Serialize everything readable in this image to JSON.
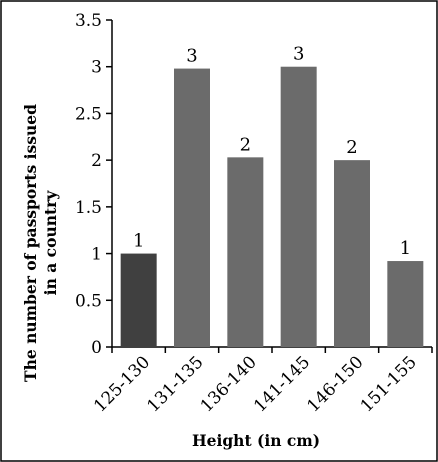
{
  "chart_data": {
    "type": "bar",
    "title": "",
    "xlabel": "Height (in cm)",
    "ylabel": [
      "The number of passports issued",
      "in a country"
    ],
    "categories": [
      "125-130",
      "131-135",
      "136-140",
      "141-145",
      "146-150",
      "151-155"
    ],
    "values": [
      1,
      3,
      2,
      3,
      2,
      1
    ],
    "display_heights": [
      1,
      2.98,
      2.03,
      3.0,
      2.0,
      0.92
    ],
    "data_labels": [
      "1",
      "3",
      "2",
      "3",
      "2",
      "1"
    ],
    "ylim": [
      0,
      3.5
    ],
    "yticks": [
      0,
      0.5,
      1,
      1.5,
      2,
      2.5,
      3,
      3.5
    ],
    "ytick_labels": [
      "0",
      "0.5",
      "1",
      "1.5",
      "2",
      "2.5",
      "3",
      "3.5"
    ],
    "grid": false,
    "legend": "none",
    "bar_colors": [
      "#404040",
      "#6b6b6b",
      "#6b6b6b",
      "#6b6b6b",
      "#6b6b6b",
      "#6b6b6b"
    ],
    "border_color": "#000000"
  }
}
